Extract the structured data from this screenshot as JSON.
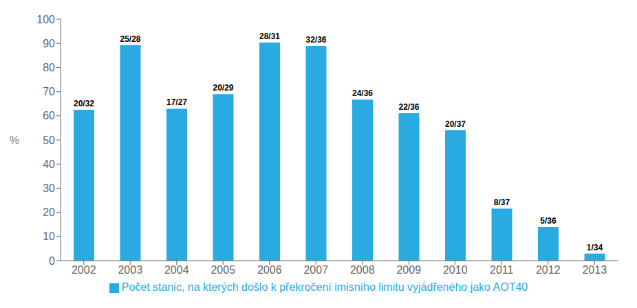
{
  "chart_data": {
    "type": "bar",
    "categories": [
      "2002",
      "2003",
      "2004",
      "2005",
      "2006",
      "2007",
      "2008",
      "2009",
      "2010",
      "2011",
      "2012",
      "2013"
    ],
    "series": [
      {
        "name": "Počet stanic, na kterých došlo k překročení imisního limitu vyjádřeného jako AOT40",
        "color": "#29ABE2",
        "values": [
          62.5,
          89.29,
          62.96,
          68.97,
          90.32,
          88.89,
          66.67,
          61.11,
          54.05,
          21.62,
          13.89,
          2.94
        ],
        "value_labels": [
          "20/32",
          "25/28",
          "17/27",
          "20/29",
          "28/31",
          "32/36",
          "24/36",
          "22/36",
          "20/37",
          "8/37",
          "5/36",
          "1/34"
        ]
      }
    ],
    "data_labels": true,
    "ylabel": "%",
    "ylim": [
      0,
      100
    ],
    "yticks": [
      0,
      10,
      20,
      30,
      40,
      50,
      60,
      70,
      80,
      90,
      100
    ],
    "grid": false,
    "legend": "bottom"
  }
}
